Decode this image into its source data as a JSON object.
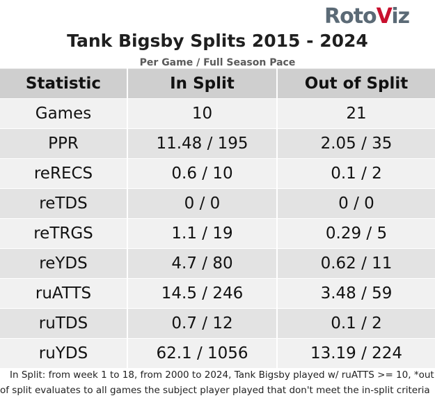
{
  "logo": {
    "brand_left": "Roto",
    "brand_mark": "V",
    "brand_right": "iz"
  },
  "title": "Tank Bigsby Splits 2015 - 2024",
  "subtitle": "Per Game / Full Season Pace",
  "table": {
    "headers": [
      "Statistic",
      "In Split",
      "Out of Split"
    ],
    "rows": [
      [
        "Games",
        "10",
        "21"
      ],
      [
        "PPR",
        "11.48 / 195",
        "2.05 / 35"
      ],
      [
        "reRECS",
        "0.6 / 10",
        "0.1 / 2"
      ],
      [
        "reTDS",
        "0 / 0",
        "0 / 0"
      ],
      [
        "reTRGS",
        "1.1 / 19",
        "0.29 / 5"
      ],
      [
        "reYDS",
        "4.7 / 80",
        "0.62 / 11"
      ],
      [
        "ruATTS",
        "14.5 / 246",
        "3.48 / 59"
      ],
      [
        "ruTDS",
        "0.7 / 12",
        "0.1 / 2"
      ],
      [
        "ruYDS",
        "62.1 / 1056",
        "13.19 / 224"
      ]
    ]
  },
  "footnote": "In Split: from week 1 to 18, from 2000 to 2024, Tank Bigsby played w/ ruATTS >= 10,  *out of split evaluates to all games the subject player played that don't meet the in-split criteria",
  "colors": {
    "header_bg": "#cfcfcf",
    "row_light": "#f1f1f1",
    "row_dark": "#e3e3e3",
    "logo_gray": "#5b6a76",
    "logo_red": "#c8102e"
  }
}
